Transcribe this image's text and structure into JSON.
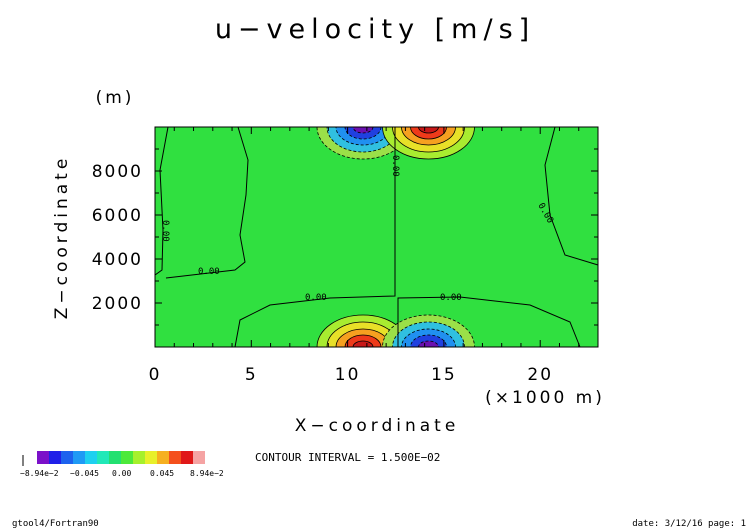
{
  "chart_data": {
    "type": "heatmap",
    "title": "u−velocity [m/s]",
    "xlabel": "X−coordinate",
    "ylabel": "Z−coordinate",
    "x_unit": "(×1000 m)",
    "y_unit": "(m)",
    "xlim": [
      0,
      23
    ],
    "ylim": [
      0,
      10000
    ],
    "x_ticks": [
      0,
      5,
      10,
      15,
      20
    ],
    "x_tick_labels": [
      "0",
      "5",
      "10",
      "15",
      "20"
    ],
    "y_ticks": [
      2000,
      4000,
      6000,
      8000
    ],
    "y_tick_labels": [
      "2000",
      "4000",
      "6000",
      "8000"
    ],
    "contour_interval_text": "CONTOUR INTERVAL = 1.500E−02",
    "contour_labels": [
      "0.00",
      "0.00",
      "0.00",
      "0.00",
      "0.00",
      "0.00"
    ],
    "colorbar": {
      "colors": [
        "#7b11c9",
        "#2020e8",
        "#1d62ee",
        "#1f9af5",
        "#1ed0f0",
        "#21e8b8",
        "#22e070",
        "#4ce93a",
        "#a6f02c",
        "#e8f02a",
        "#f6b020",
        "#f4501c",
        "#e01818",
        "#f5a3a3"
      ],
      "labels": [
        "−8.94e−2",
        "−0.045",
        "0.00",
        "0.045",
        "8.94e−2"
      ]
    },
    "features": [
      {
        "kind": "negative_max",
        "x": 10.8,
        "z": 9800,
        "sign": -1
      },
      {
        "kind": "positive_max",
        "x": 14.2,
        "z": 9800,
        "sign": 1
      },
      {
        "kind": "positive_max",
        "x": 10.8,
        "z": 200,
        "sign": 1
      },
      {
        "kind": "negative_max",
        "x": 14.2,
        "z": 200,
        "sign": -1
      }
    ]
  },
  "footer": {
    "left": "gtool4/Fortran90",
    "right": "date: 3/12/16 page: 1"
  }
}
